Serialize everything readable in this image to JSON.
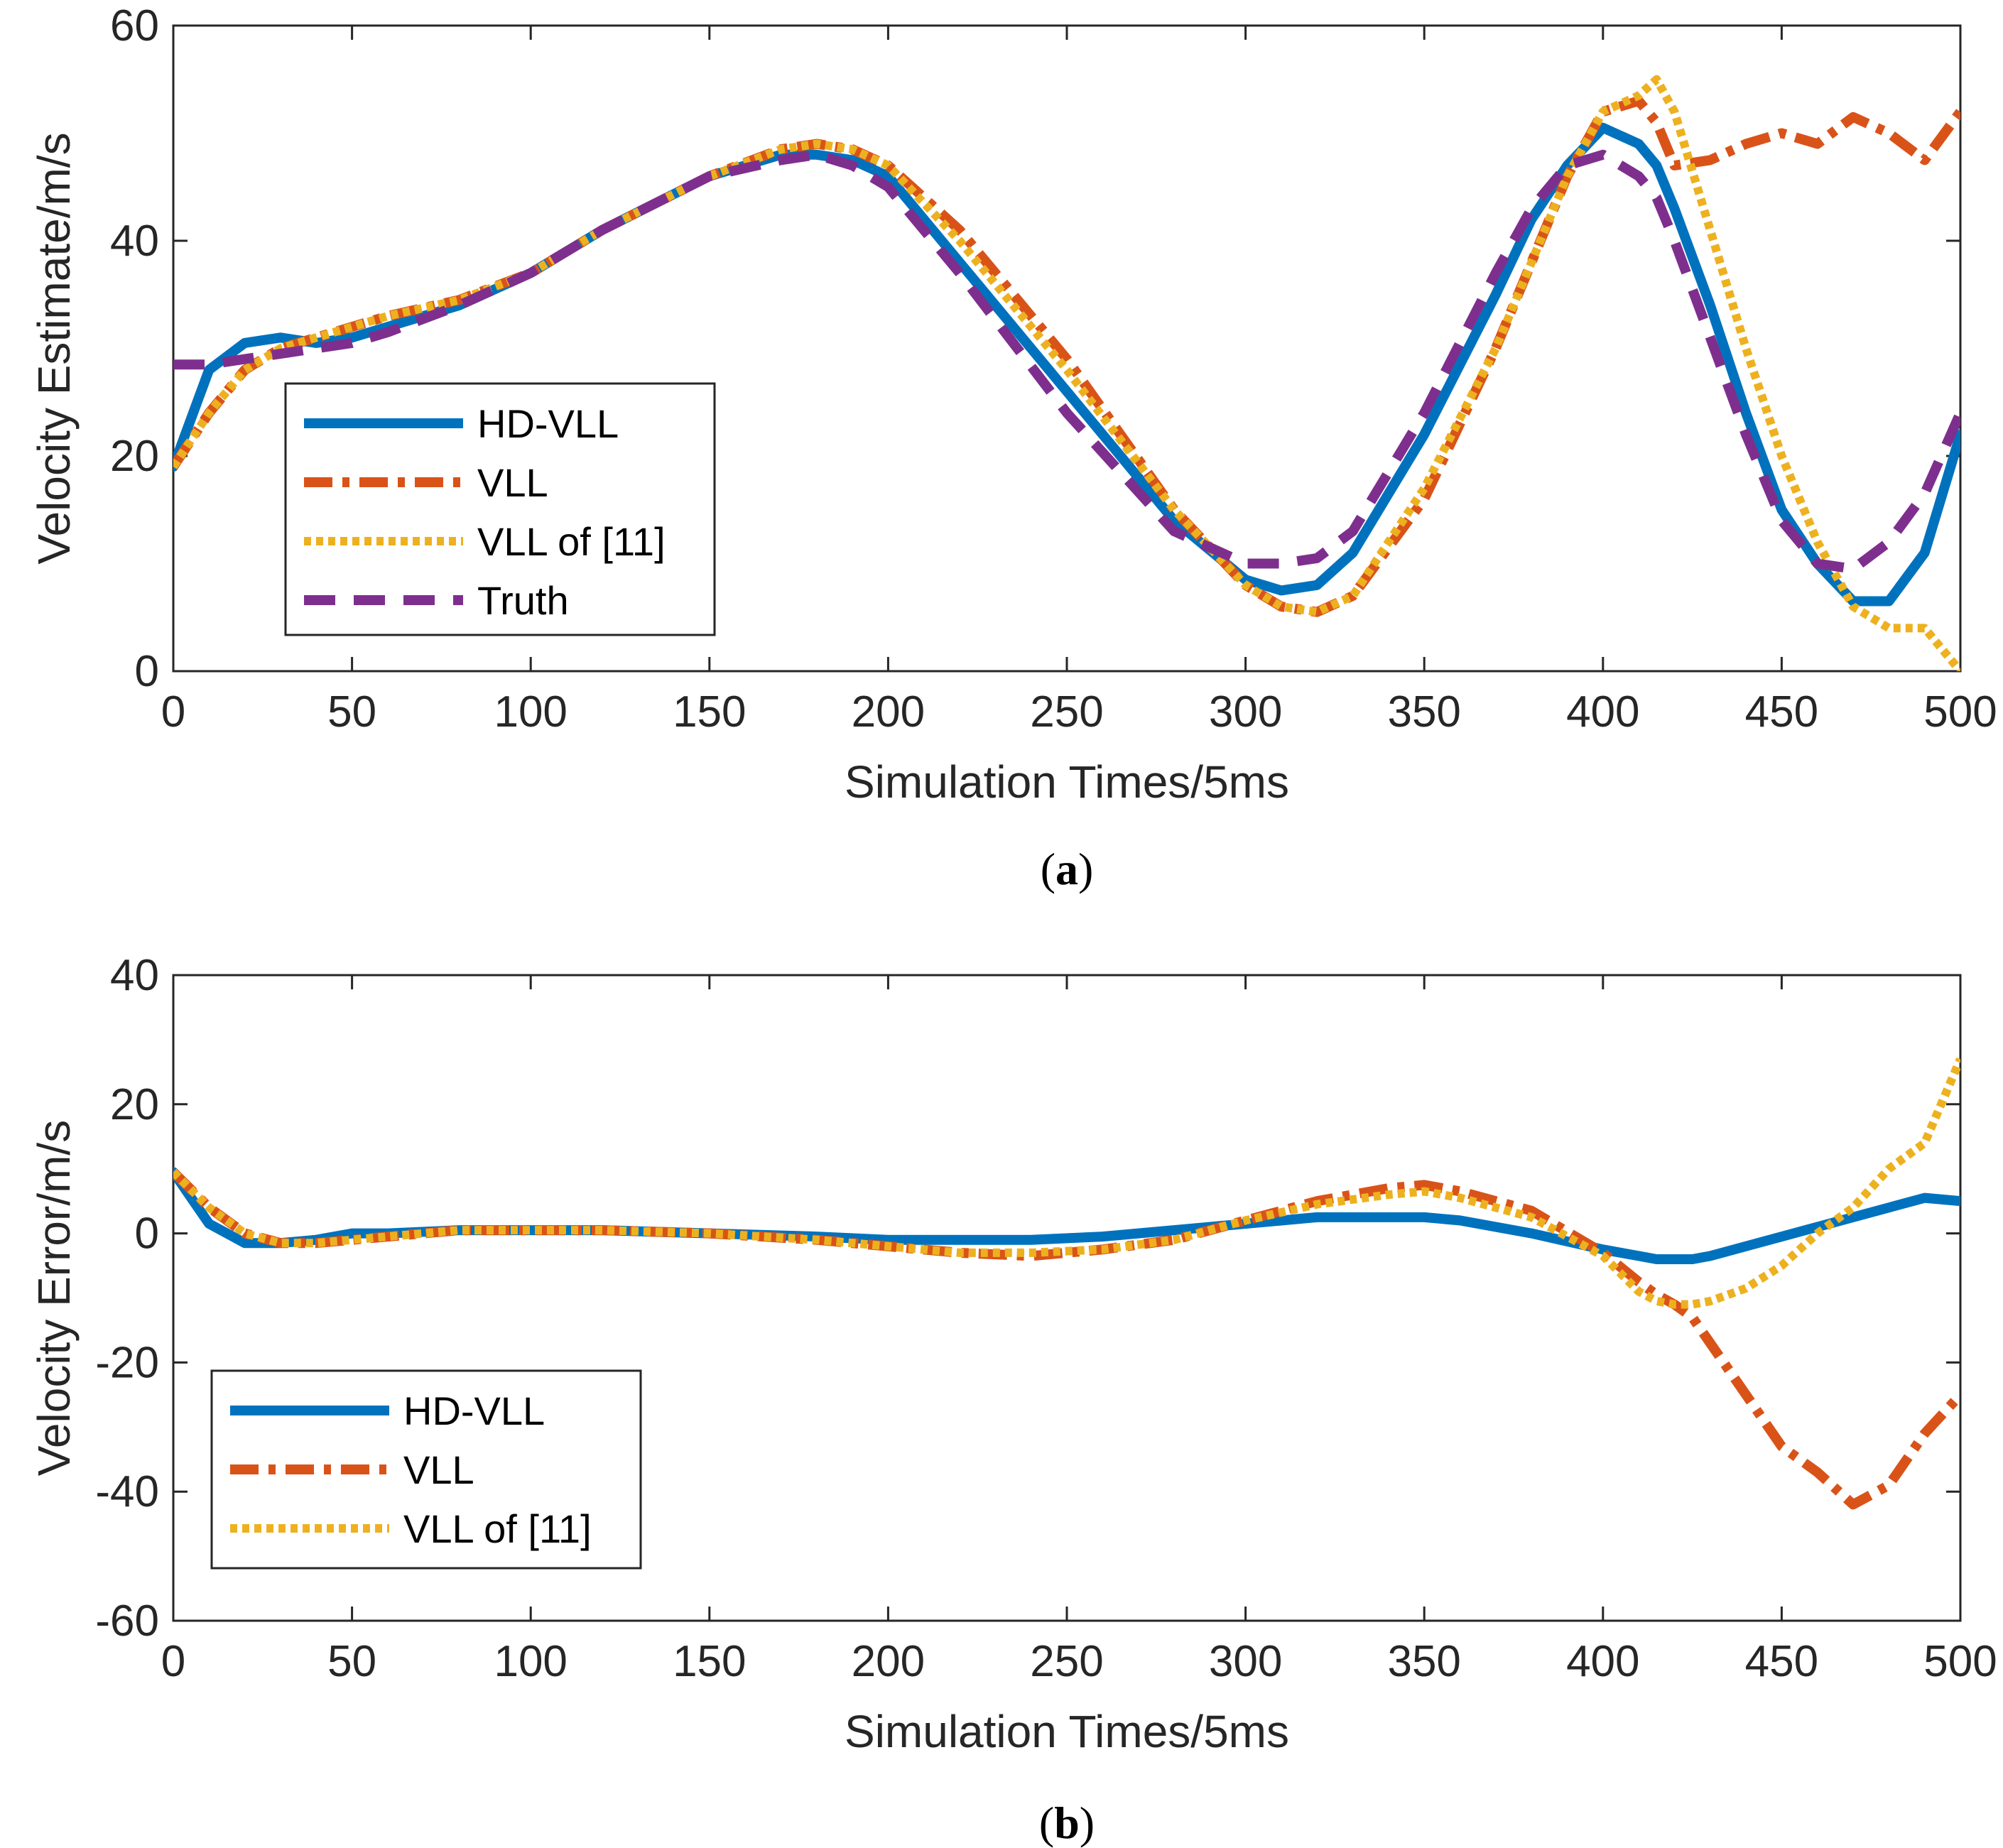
{
  "colors": {
    "hd_vll": "#0072BD",
    "vll": "#D95319",
    "vll11": "#EDB120",
    "truth": "#7E2F8E",
    "axis": "#262626"
  },
  "chart_data": [
    {
      "type": "line",
      "panel": "a",
      "caption_label": "a",
      "xlabel": "Simulation Times/5ms",
      "ylabel": "Velocity Estimate/m/s",
      "xlim": [
        0,
        500
      ],
      "ylim": [
        0,
        60
      ],
      "xticks": [
        "0",
        "50",
        "100",
        "150",
        "200",
        "250",
        "300",
        "350",
        "400",
        "450",
        "500"
      ],
      "yticks": [
        "0",
        "20",
        "40",
        "60"
      ],
      "legend_position": "left-middle",
      "x": [
        0,
        10,
        20,
        30,
        40,
        50,
        60,
        80,
        100,
        120,
        150,
        170,
        180,
        190,
        200,
        220,
        250,
        280,
        300,
        310,
        320,
        330,
        350,
        370,
        380,
        390,
        400,
        410,
        415,
        420,
        430,
        440,
        450,
        460,
        470,
        480,
        490,
        500
      ],
      "series": [
        {
          "name": "HD-VLL",
          "style": "solid",
          "color": "#0072BD",
          "values": [
            19,
            28,
            30.5,
            31,
            30.5,
            31,
            32,
            34,
            37,
            41,
            46,
            48,
            48,
            47.5,
            46,
            38,
            26,
            14,
            8.5,
            7.5,
            8,
            11,
            22,
            35,
            42,
            47,
            50.5,
            49,
            47,
            43,
            34,
            24,
            15,
            10,
            6.5,
            6.5,
            11,
            22
          ]
        },
        {
          "name": "VLL",
          "style": "dashdot",
          "color": "#D95319",
          "values": [
            19,
            24,
            28,
            30,
            31,
            32,
            33,
            34.5,
            37,
            41,
            46,
            48.5,
            49,
            48.5,
            47,
            41,
            29,
            15,
            8,
            6,
            5.5,
            7,
            16,
            30,
            38,
            46,
            52,
            53,
            51,
            47,
            47.5,
            49,
            50,
            49,
            51.5,
            50,
            47.5,
            52
          ]
        },
        {
          "name": "VLL of [11]",
          "style": "dotted",
          "color": "#EDB120",
          "values": [
            19,
            24,
            28,
            30,
            31,
            32,
            33,
            34.5,
            37,
            41,
            46,
            48.5,
            49,
            48.5,
            47,
            40,
            28,
            15,
            8,
            6,
            5.5,
            7,
            17,
            30,
            38,
            46,
            52,
            53.5,
            55,
            52,
            41,
            30,
            20,
            12,
            6,
            4,
            4,
            0
          ]
        },
        {
          "name": "Truth",
          "style": "dashed",
          "color": "#7E2F8E",
          "values": [
            28.5,
            28.5,
            29,
            29.5,
            30,
            30.5,
            31.5,
            34,
            37,
            41,
            46,
            47.5,
            48,
            47,
            45,
            37,
            24,
            13,
            10,
            10,
            10.5,
            13,
            24,
            37,
            43,
            47,
            48,
            46,
            44,
            40,
            31,
            22,
            14,
            10,
            9.5,
            12,
            16.5,
            24
          ]
        }
      ]
    },
    {
      "type": "line",
      "panel": "b",
      "caption_label": "b",
      "xlabel": "Simulation Times/5ms",
      "ylabel": "Velocity Error/m/s",
      "xlim": [
        0,
        500
      ],
      "ylim": [
        -60,
        40
      ],
      "xticks": [
        "0",
        "50",
        "100",
        "150",
        "200",
        "250",
        "300",
        "350",
        "400",
        "450",
        "500"
      ],
      "yticks": [
        "-60",
        "-40",
        "-20",
        "0",
        "20",
        "40"
      ],
      "legend_position": "bottom-left",
      "x": [
        0,
        10,
        20,
        30,
        40,
        50,
        60,
        80,
        100,
        120,
        150,
        180,
        200,
        220,
        240,
        260,
        280,
        300,
        320,
        340,
        350,
        360,
        380,
        400,
        410,
        415,
        420,
        425,
        430,
        440,
        450,
        460,
        470,
        480,
        490,
        500
      ],
      "series": [
        {
          "name": "HD-VLL",
          "style": "solid",
          "color": "#0072BD",
          "values": [
            9.5,
            1.5,
            -1.5,
            -1.5,
            -1,
            0,
            0,
            0.5,
            0.5,
            0.5,
            0,
            -0.5,
            -1,
            -1,
            -1,
            -0.5,
            0.5,
            1.5,
            2.5,
            2.5,
            2.5,
            2,
            0,
            -2.5,
            -3.5,
            -4,
            -4,
            -4,
            -3.5,
            -2,
            -0.5,
            1,
            2.5,
            4,
            5.5,
            5
          ]
        },
        {
          "name": "VLL",
          "style": "dashdot",
          "color": "#D95319",
          "values": [
            9.5,
            4,
            0,
            -1.5,
            -1.5,
            -1,
            -0.5,
            0.5,
            0.5,
            0.5,
            0,
            -1,
            -2,
            -3,
            -3.5,
            -2.5,
            -1,
            2,
            5,
            7,
            7.5,
            6.5,
            3.5,
            -3,
            -7.5,
            -9.5,
            -11,
            -13,
            -17,
            -25,
            -33,
            -37,
            -42,
            -39,
            -31,
            -25
          ]
        },
        {
          "name": "VLL of [11]",
          "style": "dotted",
          "color": "#EDB120",
          "values": [
            9.5,
            4,
            0,
            -1.5,
            -1.5,
            -1,
            -0.5,
            0.5,
            0.5,
            0.5,
            0,
            -1,
            -2,
            -3,
            -3,
            -2.5,
            -1,
            2,
            4.5,
            6,
            6.5,
            5.5,
            2.5,
            -3.5,
            -9,
            -10.5,
            -11,
            -11,
            -10.5,
            -8.5,
            -5,
            0,
            4,
            10,
            14,
            27
          ]
        }
      ]
    }
  ]
}
